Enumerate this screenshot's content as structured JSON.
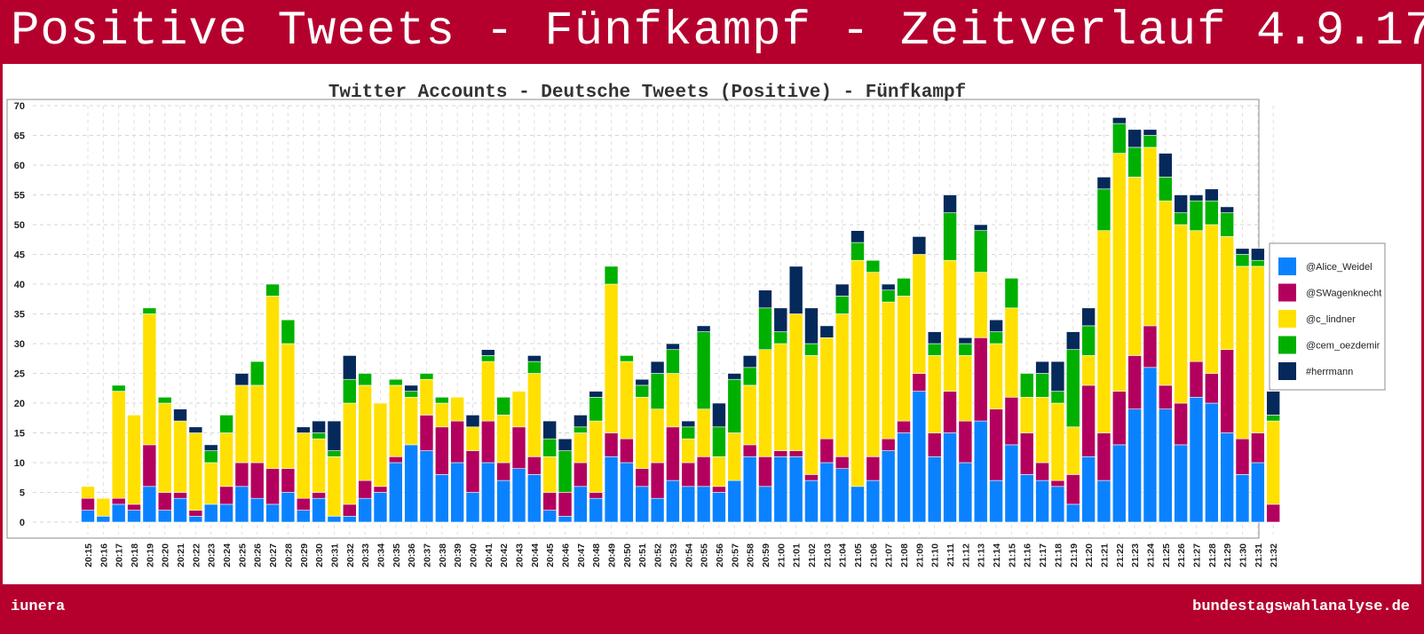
{
  "page": {
    "banner_title": "Positive Tweets - Fünfkampf - Zeitverlauf 4.9.17",
    "footer_left": "iunera",
    "footer_right": "bundestagswahlanalyse.de"
  },
  "chart_data": {
    "type": "bar",
    "stacked": true,
    "title": "Twitter Accounts - Deutsche Tweets (Positive) - Fünfkampf",
    "xlabel": "",
    "ylabel": "",
    "ylim": [
      0,
      70
    ],
    "yticks": [
      0,
      5,
      10,
      15,
      20,
      25,
      30,
      35,
      40,
      45,
      50,
      55,
      60,
      65,
      70
    ],
    "grid": true,
    "legend_position": "right",
    "categories": [
      "20:15",
      "20:16",
      "20:17",
      "20:18",
      "20:19",
      "20:20",
      "20:21",
      "20:22",
      "20:23",
      "20:24",
      "20:25",
      "20:26",
      "20:27",
      "20:28",
      "20:29",
      "20:30",
      "20:31",
      "20:32",
      "20:33",
      "20:34",
      "20:35",
      "20:36",
      "20:37",
      "20:38",
      "20:39",
      "20:40",
      "20:41",
      "20:42",
      "20:43",
      "20:44",
      "20:45",
      "20:46",
      "20:47",
      "20:48",
      "20:49",
      "20:50",
      "20:51",
      "20:52",
      "20:53",
      "20:54",
      "20:55",
      "20:56",
      "20:57",
      "20:58",
      "20:59",
      "21:00",
      "21:01",
      "21:02",
      "21:03",
      "21:04",
      "21:05",
      "21:06",
      "21:07",
      "21:08",
      "21:09",
      "21:10",
      "21:11",
      "21:12",
      "21:13",
      "21:14",
      "21:15",
      "21:16",
      "21:17",
      "21:18",
      "21:19",
      "21:20",
      "21:21",
      "21:22",
      "21:23",
      "21:24",
      "21:25",
      "21:26",
      "21:27",
      "21:28",
      "21:29",
      "21:30",
      "21:31",
      "21:32"
    ],
    "series": [
      {
        "name": "@Alice_Weidel",
        "color": "#0a82ff",
        "values": [
          2,
          1,
          3,
          2,
          6,
          2,
          4,
          1,
          3,
          3,
          6,
          4,
          3,
          5,
          2,
          4,
          1,
          1,
          4,
          5,
          10,
          13,
          12,
          8,
          10,
          5,
          10,
          7,
          9,
          8,
          2,
          1,
          6,
          4,
          11,
          10,
          6,
          4,
          7,
          6,
          6,
          5,
          7,
          11,
          6,
          11,
          11,
          7,
          10,
          9,
          6,
          7,
          12,
          15,
          22,
          11,
          15,
          10,
          17,
          7,
          13,
          8,
          7,
          6,
          3,
          11,
          7,
          13,
          19,
          26,
          19,
          13,
          21,
          20,
          15,
          8,
          10,
          0
        ]
      },
      {
        "name": "@SWagenknecht",
        "color": "#b3005e",
        "values": [
          2,
          0,
          1,
          1,
          7,
          3,
          1,
          1,
          0,
          3,
          4,
          6,
          6,
          4,
          2,
          1,
          0,
          2,
          3,
          1,
          1,
          0,
          6,
          8,
          7,
          7,
          7,
          3,
          7,
          3,
          3,
          4,
          4,
          1,
          4,
          4,
          3,
          6,
          9,
          4,
          5,
          1,
          0,
          2,
          5,
          1,
          1,
          1,
          4,
          2,
          0,
          4,
          2,
          2,
          3,
          4,
          7,
          7,
          14,
          12,
          8,
          7,
          3,
          1,
          5,
          12,
          8,
          9,
          9,
          7,
          4,
          7,
          6,
          5,
          14,
          6,
          5,
          3
        ]
      },
      {
        "name": "@c_lindner",
        "color": "#ffe000",
        "values": [
          2,
          3,
          18,
          15,
          22,
          15,
          12,
          13,
          7,
          9,
          13,
          13,
          29,
          21,
          11,
          9,
          10,
          17,
          16,
          14,
          12,
          8,
          6,
          4,
          4,
          4,
          10,
          8,
          6,
          14,
          6,
          0,
          5,
          12,
          25,
          13,
          12,
          9,
          9,
          4,
          8,
          5,
          8,
          10,
          18,
          18,
          23,
          20,
          17,
          24,
          38,
          31,
          23,
          21,
          20,
          13,
          22,
          11,
          11,
          11,
          15,
          6,
          11,
          13,
          8,
          5,
          34,
          40,
          30,
          30,
          31,
          30,
          22,
          25,
          19,
          29,
          28,
          14
        ]
      },
      {
        "name": "@cem_oezdemir",
        "color": "#00b000",
        "values": [
          0,
          0,
          1,
          0,
          1,
          1,
          0,
          0,
          2,
          3,
          0,
          4,
          2,
          4,
          0,
          1,
          1,
          4,
          2,
          0,
          1,
          1,
          1,
          1,
          0,
          0,
          1,
          3,
          0,
          2,
          3,
          7,
          1,
          4,
          3,
          1,
          2,
          6,
          4,
          2,
          13,
          5,
          9,
          3,
          7,
          2,
          0,
          2,
          0,
          3,
          3,
          2,
          2,
          3,
          0,
          2,
          8,
          2,
          7,
          2,
          5,
          4,
          4,
          2,
          13,
          5,
          7,
          5,
          5,
          2,
          4,
          2,
          5,
          4,
          4,
          2,
          1,
          1
        ]
      },
      {
        "name": "#herrmann",
        "color": "#05295a",
        "values": [
          0,
          0,
          0,
          0,
          0,
          0,
          2,
          1,
          1,
          0,
          2,
          0,
          0,
          0,
          1,
          2,
          5,
          4,
          0,
          0,
          0,
          1,
          0,
          0,
          0,
          2,
          1,
          0,
          0,
          1,
          3,
          2,
          2,
          1,
          0,
          0,
          1,
          2,
          1,
          1,
          1,
          4,
          1,
          2,
          3,
          4,
          8,
          6,
          2,
          2,
          2,
          0,
          1,
          0,
          3,
          2,
          3,
          1,
          1,
          2,
          0,
          0,
          2,
          5,
          3,
          3,
          2,
          1,
          3,
          1,
          4,
          3,
          1,
          2,
          1,
          1,
          2,
          4
        ]
      }
    ]
  }
}
